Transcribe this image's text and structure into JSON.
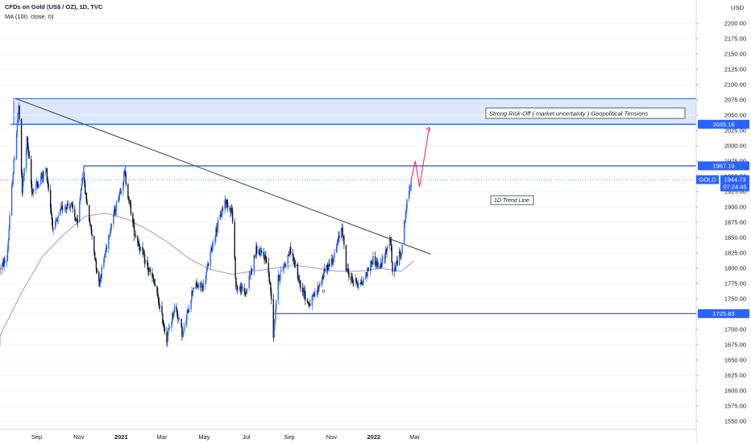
{
  "header": {
    "title": "CFDs on Gold (US$ / OZ), 1D, TVC",
    "indicator": "MA (100, close, 0)"
  },
  "currency": "USD",
  "colors": {
    "up": "#2962ff",
    "down": "#131722",
    "ma": "#9c95d8",
    "level": "#2962ff",
    "trend": "#363a45",
    "projection": "#e91e63",
    "zone_fill": "#dbe8fd"
  },
  "chart_data": {
    "type": "candlestick",
    "ylim": [
      1535,
      2240
    ],
    "y_ticks": [
      1550,
      1575,
      1600,
      1625,
      1650,
      1675,
      1700,
      1725,
      1750,
      1775,
      1800,
      1825,
      1850,
      1875,
      1900,
      1925,
      1950,
      1975,
      2000,
      2025,
      2050,
      2075,
      2100,
      2125,
      2150,
      2175,
      2200
    ],
    "x_tick_labels": [
      "Sep",
      "Nov",
      "2021",
      "Mar",
      "May",
      "Jul",
      "Sep",
      "Nov",
      "2022",
      "Mar"
    ],
    "price_path": [
      [
        "2020-07-10",
        1800
      ],
      [
        "2020-07-20",
        1815
      ],
      [
        "2020-07-27",
        1930
      ],
      [
        "2020-08-06",
        2065
      ],
      [
        "2020-08-11",
        1925
      ],
      [
        "2020-08-18",
        2010
      ],
      [
        "2020-08-25",
        1925
      ],
      [
        "2020-09-03",
        1940
      ],
      [
        "2020-09-15",
        1960
      ],
      [
        "2020-09-25",
        1860
      ],
      [
        "2020-10-08",
        1900
      ],
      [
        "2020-10-20",
        1905
      ],
      [
        "2020-10-30",
        1870
      ],
      [
        "2020-11-06",
        1955
      ],
      [
        "2020-11-16",
        1880
      ],
      [
        "2020-11-30",
        1775
      ],
      [
        "2020-12-15",
        1860
      ],
      [
        "2021-01-06",
        1955
      ],
      [
        "2021-01-20",
        1860
      ],
      [
        "2021-02-05",
        1810
      ],
      [
        "2021-02-18",
        1775
      ],
      [
        "2021-03-01",
        1720
      ],
      [
        "2021-03-08",
        1685
      ],
      [
        "2021-03-20",
        1740
      ],
      [
        "2021-03-31",
        1690
      ],
      [
        "2021-04-15",
        1770
      ],
      [
        "2021-04-30",
        1770
      ],
      [
        "2021-05-15",
        1850
      ],
      [
        "2021-05-31",
        1910
      ],
      [
        "2021-06-10",
        1895
      ],
      [
        "2021-06-16",
        1770
      ],
      [
        "2021-06-30",
        1760
      ],
      [
        "2021-07-15",
        1830
      ],
      [
        "2021-07-30",
        1815
      ],
      [
        "2021-08-06",
        1755
      ],
      [
        "2021-08-09",
        1690
      ],
      [
        "2021-08-15",
        1780
      ],
      [
        "2021-09-03",
        1830
      ],
      [
        "2021-09-15",
        1780
      ],
      [
        "2021-09-29",
        1740
      ],
      [
        "2021-10-10",
        1760
      ],
      [
        "2021-10-22",
        1795
      ],
      [
        "2021-11-05",
        1820
      ],
      [
        "2021-11-16",
        1870
      ],
      [
        "2021-11-22",
        1800
      ],
      [
        "2021-12-01",
        1780
      ],
      [
        "2021-12-15",
        1775
      ],
      [
        "2021-12-31",
        1815
      ],
      [
        "2022-01-10",
        1800
      ],
      [
        "2022-01-25",
        1850
      ],
      [
        "2022-01-28",
        1790
      ],
      [
        "2022-02-10",
        1830
      ],
      [
        "2022-02-17",
        1900
      ],
      [
        "2022-02-24",
        1945
      ]
    ],
    "moving_average": [
      [
        "2020-07-10",
        1690
      ],
      [
        "2020-08-10",
        1760
      ],
      [
        "2020-09-10",
        1820
      ],
      [
        "2020-10-10",
        1855
      ],
      [
        "2020-11-10",
        1885
      ],
      [
        "2020-12-10",
        1890
      ],
      [
        "2021-01-10",
        1880
      ],
      [
        "2021-02-10",
        1862
      ],
      [
        "2021-03-10",
        1842
      ],
      [
        "2021-04-10",
        1815
      ],
      [
        "2021-05-10",
        1798
      ],
      [
        "2021-06-10",
        1790
      ],
      [
        "2021-07-10",
        1795
      ],
      [
        "2021-08-10",
        1800
      ],
      [
        "2021-09-10",
        1805
      ],
      [
        "2021-10-10",
        1800
      ],
      [
        "2021-11-10",
        1795
      ],
      [
        "2021-12-10",
        1795
      ],
      [
        "2022-01-10",
        1800
      ],
      [
        "2022-02-10",
        1795
      ],
      [
        "2022-02-28",
        1812
      ]
    ],
    "trend_line": {
      "label": "1D Trend Line",
      "from": [
        "2020-08-02",
        2077
      ],
      "to": [
        "2022-03-24",
        1823
      ]
    },
    "resistance_zone": {
      "label": "Strong Risk-Off ( market uncertainty )  Geopolitical Tensions",
      "top": 2077,
      "bottom": 2035
    },
    "levels": [
      {
        "value": 2035.16,
        "label": "2035.16",
        "start": "2020-07-25"
      },
      {
        "value": 1967.19,
        "label": "1967.19",
        "start": "2020-11-08"
      },
      {
        "value": 1725.83,
        "label": "1725.83",
        "start": "2021-08-10"
      }
    ],
    "current_price": {
      "symbol": "GOLD",
      "value": "1944.73",
      "countdown": "07:24:45",
      "y": 1944.73
    },
    "projection": [
      [
        "2022-02-24",
        1944
      ],
      [
        "2022-03-02",
        1975
      ],
      [
        "2022-03-08",
        1933
      ],
      [
        "2022-03-22",
        2030
      ]
    ],
    "marker": {
      "text": "o",
      "date": "2021-10-18",
      "y": 1760
    }
  }
}
